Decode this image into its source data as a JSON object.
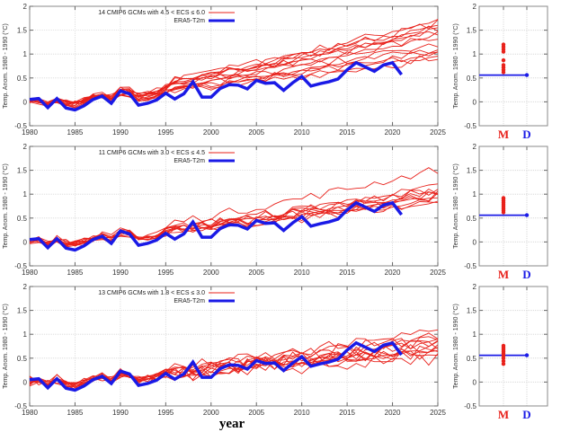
{
  "chart_data": {
    "type": "line",
    "xlabel": "year",
    "ylabel": "Temp. Anom. 1980 - 1990 (°C)",
    "xlim": [
      1980,
      2025
    ],
    "ylim": [
      -0.5,
      2
    ],
    "xticks": [
      1980,
      1985,
      1990,
      1995,
      2000,
      2005,
      2010,
      2015,
      2020,
      2025
    ],
    "yticks": [
      -0.5,
      0,
      0.5,
      1,
      1.5,
      2
    ],
    "ytick_labels": [
      "-0.5",
      "0",
      "0.5",
      "1",
      "1.5",
      "2"
    ],
    "grid": true,
    "legend_position": "top-center",
    "colors": {
      "models": "#e8201a",
      "era5": "#1a1ae6",
      "m_label": "#e8201a",
      "d_label": "#1a1ae6"
    },
    "era5": {
      "name": "ERA5-T2m",
      "years": [
        1980,
        1981,
        1982,
        1983,
        1984,
        1985,
        1986,
        1987,
        1988,
        1989,
        1990,
        1991,
        1992,
        1993,
        1994,
        1995,
        1996,
        1997,
        1998,
        1999,
        2000,
        2001,
        2002,
        2003,
        2004,
        2005,
        2006,
        2007,
        2008,
        2009,
        2010,
        2011,
        2012,
        2013,
        2014,
        2015,
        2016,
        2017,
        2018,
        2019,
        2020,
        2021
      ],
      "values": [
        0.05,
        0.07,
        -0.12,
        0.07,
        -0.13,
        -0.17,
        -0.08,
        0.05,
        0.12,
        -0.03,
        0.23,
        0.17,
        -0.07,
        -0.03,
        0.04,
        0.18,
        0.06,
        0.17,
        0.42,
        0.1,
        0.1,
        0.28,
        0.36,
        0.35,
        0.27,
        0.45,
        0.39,
        0.4,
        0.24,
        0.4,
        0.53,
        0.33,
        0.38,
        0.42,
        0.48,
        0.67,
        0.82,
        0.73,
        0.64,
        0.77,
        0.82,
        0.57
      ]
    },
    "panels": [
      {
        "legend_models": "14 CMIP6 GCMs with 4.5 < ECS ≤ 6.0",
        "legend_obs": "ERA5-T2m",
        "model_count": 14,
        "model_trend_2025": [
          1.72,
          1.65,
          1.6,
          1.55,
          1.5,
          1.45,
          1.4,
          1.35,
          1.2,
          1.12,
          1.05,
          1.0,
          0.95,
          0.9
        ],
        "model_noise": 0.08,
        "side_panel": {
          "categories": [
            "M",
            "D"
          ],
          "model_values": [
            0.62,
            0.67,
            0.72,
            0.77,
            0.87,
            1.05,
            1.1,
            1.15,
            1.2
          ],
          "data_value": 0.56
        }
      },
      {
        "legend_models": "11 CMIP6 GCMs with 3.0 < ECS ≤ 4.5",
        "legend_obs": "ERA5-T2m",
        "model_count": 11,
        "model_trend_2025": [
          1.52,
          1.15,
          1.1,
          1.08,
          1.05,
          1.0,
          0.98,
          0.95,
          0.9,
          0.85,
          0.8
        ],
        "model_noise": 0.09,
        "side_panel": {
          "categories": [
            "M",
            "D"
          ],
          "model_values": [
            0.62,
            0.66,
            0.7,
            0.74,
            0.78,
            0.82,
            0.86,
            0.9,
            0.92
          ],
          "data_value": 0.56
        }
      },
      {
        "legend_models": "13 CMIP6 GCMs with 1.8 < ECS ≤ 3.0",
        "legend_obs": "ERA5-T2m",
        "model_count": 13,
        "model_trend_2025": [
          1.05,
          0.95,
          0.9,
          0.85,
          0.82,
          0.8,
          0.78,
          0.75,
          0.72,
          0.7,
          0.65,
          0.6,
          0.5
        ],
        "model_noise": 0.14,
        "side_panel": {
          "categories": [
            "M",
            "D"
          ],
          "model_values": [
            0.38,
            0.44,
            0.5,
            0.55,
            0.6,
            0.64,
            0.68,
            0.72,
            0.76
          ],
          "data_value": 0.56
        }
      }
    ]
  }
}
